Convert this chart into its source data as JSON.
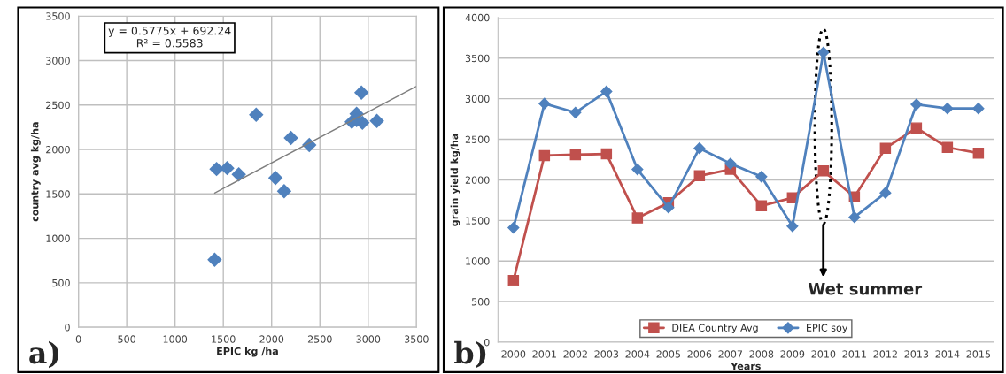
{
  "chart_data": [
    {
      "type": "scatter",
      "xlabel": "EPIC kg /ha",
      "ylabel": "country avg kg/ha",
      "xlim": [
        0,
        3500
      ],
      "ylim": [
        0,
        3500
      ],
      "xticks": [
        0,
        500,
        1000,
        1500,
        2000,
        2500,
        3000,
        3500
      ],
      "yticks": [
        0,
        500,
        1000,
        1500,
        2000,
        2500,
        3000,
        3500
      ],
      "grid": true,
      "annotations": [
        "y = 0.5775x + 692.24\nR² = 0.5583",
        "a)"
      ],
      "series": [
        {
          "type": "scatter",
          "marker": "diamond",
          "color": "#4f81bd",
          "x": [
            1410,
            2940,
            2830,
            3090,
            2130,
            1660,
            2390,
            2200,
            2040,
            1430,
            1540,
            1840,
            2930,
            2880,
            2880
          ],
          "values": [
            760,
            2300,
            2310,
            2320,
            1530,
            1720,
            2050,
            2130,
            1680,
            1780,
            1790,
            2390,
            2640,
            2400,
            2330
          ]
        },
        {
          "type": "line",
          "color": "#7f7f7f",
          "x": [
            1410,
            3500
          ],
          "values": [
            1510,
            2710
          ]
        }
      ]
    },
    {
      "type": "line",
      "xlabel": "Years",
      "ylabel": "grain yield kg/ha",
      "ylim": [
        0,
        4000
      ],
      "yticks": [
        0,
        500,
        1000,
        1500,
        2000,
        2500,
        3000,
        3500,
        4000
      ],
      "grid": "y",
      "legend": "bottom",
      "categories": [
        "2000",
        "2001",
        "2002",
        "2003",
        "2004",
        "2005",
        "2006",
        "2007",
        "2008",
        "2009",
        "2010",
        "2011",
        "2012",
        "2013",
        "2014",
        "2015"
      ],
      "annotations": [
        "Wet summer",
        "b)"
      ],
      "series": [
        {
          "name": "DIEA Country Avg",
          "color": "#c0504d",
          "marker": "square",
          "values": [
            760,
            2300,
            2310,
            2320,
            1530,
            1720,
            2050,
            2130,
            1680,
            1780,
            2110,
            1790,
            2390,
            2640,
            2400,
            2330
          ]
        },
        {
          "name": "EPIC soy",
          "color": "#4f81bd",
          "marker": "diamond",
          "values": [
            1410,
            2940,
            2830,
            3090,
            2130,
            1660,
            2390,
            2200,
            2040,
            1430,
            3570,
            1540,
            1840,
            2930,
            2880,
            2880
          ]
        }
      ]
    }
  ]
}
